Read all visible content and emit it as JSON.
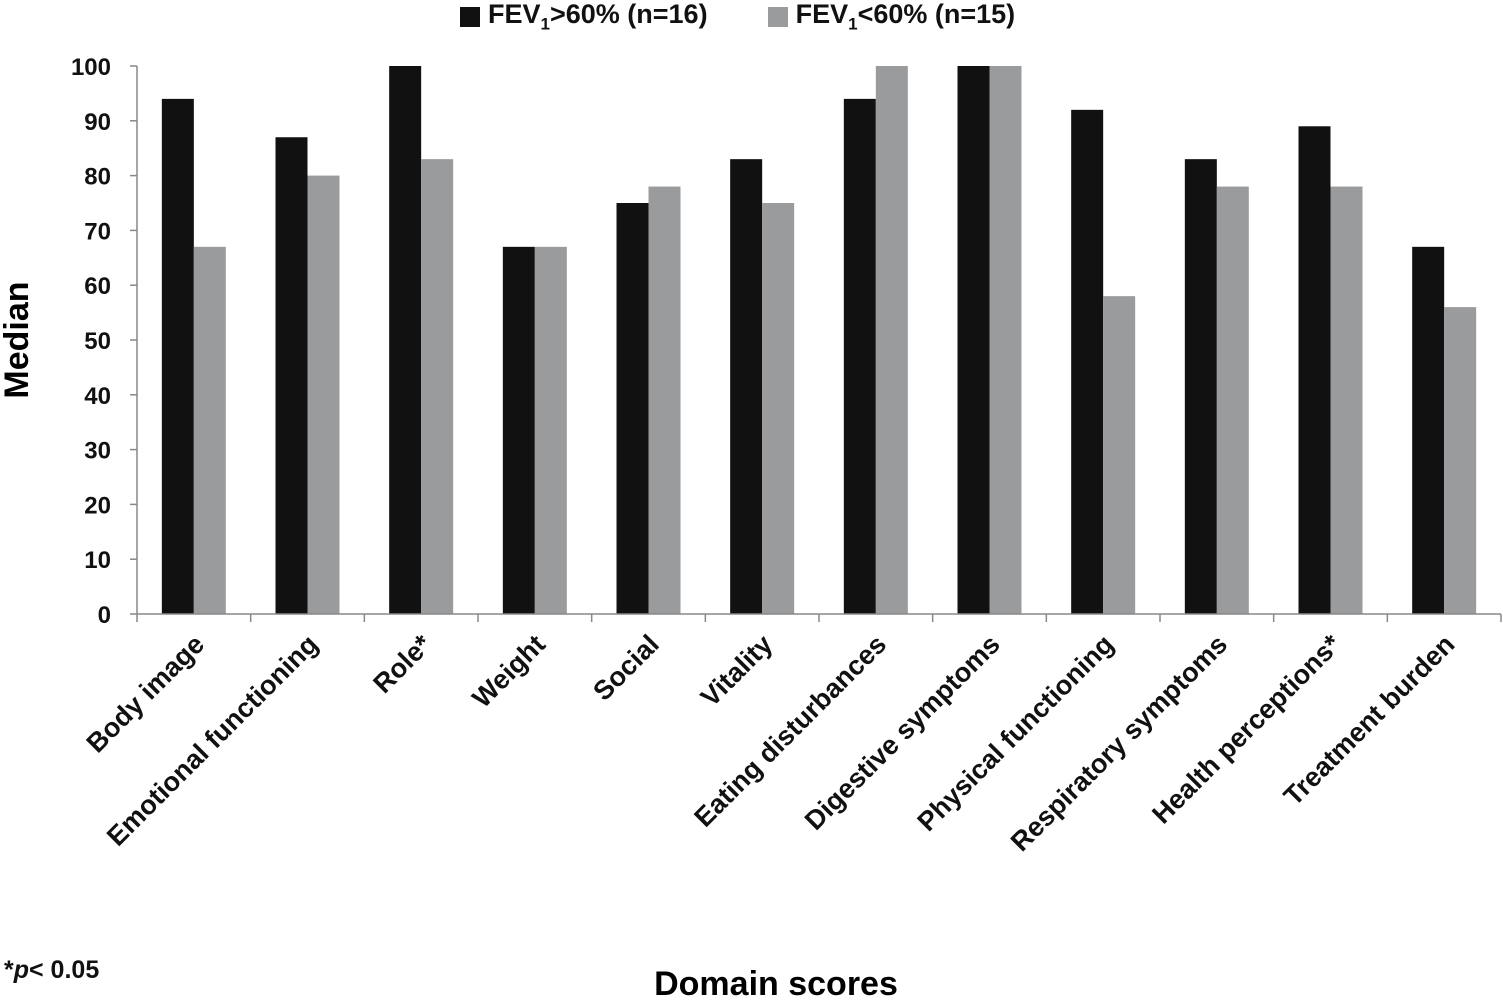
{
  "chart_data": {
    "type": "bar",
    "title": "",
    "xlabel": "Domain scores",
    "ylabel": "Median",
    "ylim": [
      0,
      100
    ],
    "yticks": [
      "0",
      "10",
      "20",
      "30",
      "40",
      "50",
      "60",
      "70",
      "80",
      "90",
      "100"
    ],
    "categories": [
      "Body image",
      "Emotional functioning",
      "Role*",
      "Weight",
      "Social",
      "Vitality",
      "Eating disturbances",
      "Digestive symptoms",
      "Physical functioning",
      "Respiratory symptoms",
      "Health perceptions*",
      "Treatment burden"
    ],
    "series": [
      {
        "name": "FEV1>60% (n=16)",
        "name_parts": [
          "FEV",
          "1",
          ">60% (n=16)"
        ],
        "color": "#111111",
        "values": [
          94,
          87,
          100,
          67,
          75,
          83,
          94,
          100,
          92,
          83,
          89,
          67
        ]
      },
      {
        "name": "FEV1<60% (n=15)",
        "name_parts": [
          "FEV",
          "1",
          "<60% (n=15)"
        ],
        "color": "#9a9b9d",
        "values": [
          67,
          80,
          83,
          67,
          78,
          75,
          100,
          100,
          58,
          78,
          78,
          56
        ]
      }
    ],
    "legend_position": "top-center",
    "grid": false,
    "footnote": {
      "prefix": "*",
      "italic": "p",
      "suffix": "< 0.05"
    }
  }
}
